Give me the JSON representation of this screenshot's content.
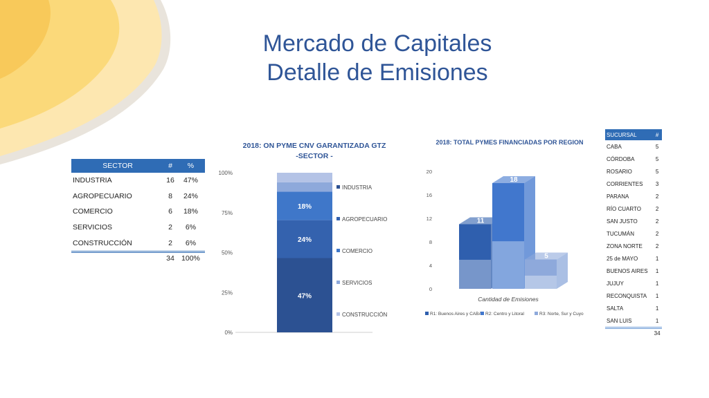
{
  "slide": {
    "title_line1": "Mercado de Capitales",
    "title_line2": "Detalle de Emisiones",
    "colors": {
      "title": "#2f5597",
      "header": "#2f6cb5"
    }
  },
  "sector_table": {
    "headers": [
      "SECTOR",
      "#",
      "%"
    ],
    "rows": [
      [
        "INDUSTRIA",
        "16",
        "47%"
      ],
      [
        "AGROPECUARIO",
        "8",
        "24%"
      ],
      [
        "COMERCIO",
        "6",
        "18%"
      ],
      [
        "SERVICIOS",
        "2",
        "6%"
      ],
      [
        "CONSTRUCCIÓN",
        "2",
        "6%"
      ]
    ],
    "total": [
      "",
      "34",
      "100%"
    ]
  },
  "branch_table": {
    "headers": [
      "SUCURSAL",
      "#"
    ],
    "rows": [
      [
        "CABA",
        "5"
      ],
      [
        "CÓRDOBA",
        "5"
      ],
      [
        "ROSARIO",
        "5"
      ],
      [
        "CORRIENTES",
        "3"
      ],
      [
        "PARANA",
        "2"
      ],
      [
        "RÍO CUARTO",
        "2"
      ],
      [
        "SAN JUSTO",
        "2"
      ],
      [
        "TUCUMÁN",
        "2"
      ],
      [
        "ZONA NORTE",
        "2"
      ],
      [
        "25 de MAYO",
        "1"
      ],
      [
        "BUENOS AIRES",
        "1"
      ],
      [
        "JUJUY",
        "1"
      ],
      [
        "RECONQUISTA",
        "1"
      ],
      [
        "SALTA",
        "1"
      ],
      [
        "SAN LUIS",
        "1"
      ]
    ],
    "total": "34"
  },
  "chart_data": [
    {
      "type": "bar",
      "stacked": true,
      "title": "2018: ON PYME CNV GARANTIZADA GTZ -SECTOR -",
      "title_lines": [
        "2018: ON PYME CNV GARANTIZADA GTZ",
        "-SECTOR -"
      ],
      "categories": [
        ""
      ],
      "series": [
        {
          "name": "CONSTRUCCIÓN",
          "values": [
            6
          ],
          "label": "",
          "color": "#b4c3e6"
        },
        {
          "name": "SERVICIOS",
          "values": [
            6
          ],
          "label": "",
          "color": "#8ea9db"
        },
        {
          "name": "COMERCIO",
          "values": [
            18
          ],
          "label": "18%",
          "color": "#3f77c9"
        },
        {
          "name": "AGROPECUARIO",
          "values": [
            24
          ],
          "label": "24%",
          "color": "#3462ae"
        },
        {
          "name": "INDUSTRIA",
          "values": [
            47
          ],
          "label": "47%",
          "color": "#2c5192"
        }
      ],
      "legend_order": [
        "INDUSTRIA",
        "AGROPECUARIO",
        "COMERCIO",
        "SERVICIOS",
        "CONSTRUCCIÓN"
      ],
      "legend_position": "right",
      "ylim": [
        0,
        100
      ],
      "yticks": [
        "0%",
        "25%",
        "50%",
        "75%",
        "100%"
      ],
      "grid": false
    },
    {
      "type": "bar",
      "style": "3d",
      "title": "2018: TOTAL PYMES FINANCIADAS POR REGION",
      "xlabel": "Cantidad de Emisiones",
      "categories": [
        "Cantidad de Emisiones"
      ],
      "series": [
        {
          "name": "R1: Buenos Aires y CABA",
          "values": [
            11
          ],
          "color": "#2f5fae"
        },
        {
          "name": "R2: Centro y Litoral",
          "values": [
            18
          ],
          "color": "#4177cd"
        },
        {
          "name": "R3: Norte, Sur y Cuyo",
          "values": [
            5
          ],
          "color": "#8ea9db"
        }
      ],
      "ylim": [
        0,
        20
      ],
      "yticks": [
        "0",
        "4",
        "8",
        "12",
        "16",
        "20"
      ],
      "legend_position": "bottom",
      "grid": false
    }
  ]
}
